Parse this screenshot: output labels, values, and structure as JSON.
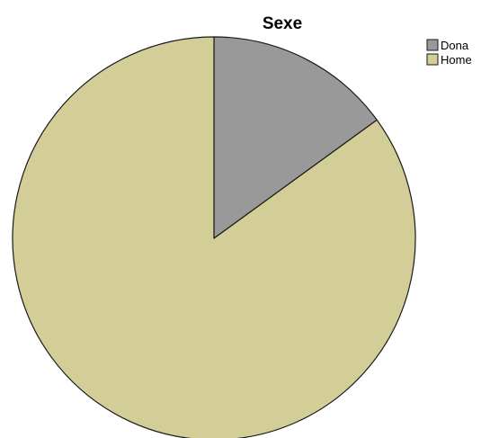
{
  "chart_data": {
    "type": "pie",
    "title": "Sexe",
    "categories": [
      "Dona",
      "Home"
    ],
    "values": [
      15,
      85
    ],
    "colors": [
      "#999999",
      "#d3ce97"
    ],
    "start_angle_deg": 0,
    "direction": "clockwise",
    "legend_position": "top-right"
  }
}
